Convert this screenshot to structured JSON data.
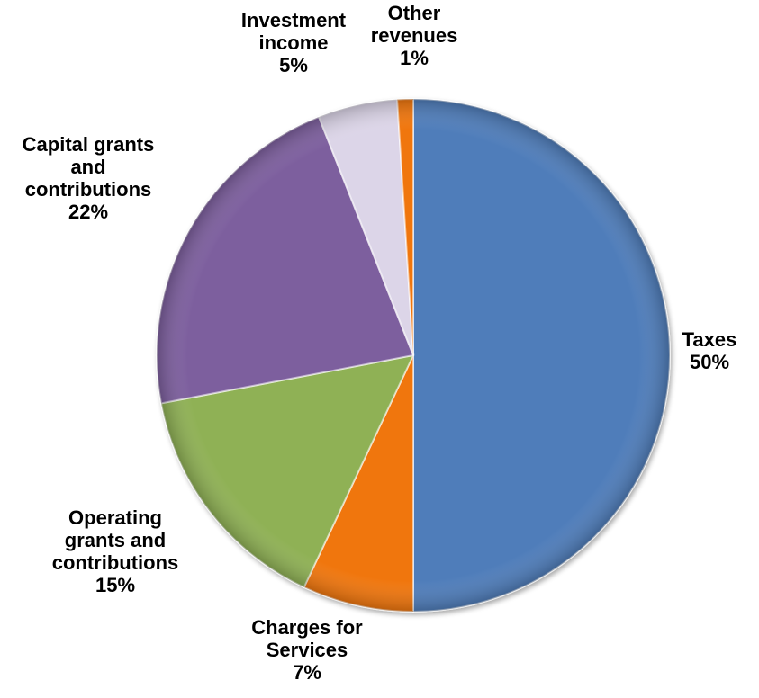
{
  "chart_data": {
    "type": "pie",
    "title": "",
    "start_angle_deg": 0,
    "direction": "clockwise",
    "effect": "3d-bevel",
    "slices": [
      {
        "label_lines": [
          "Taxes",
          "50%"
        ],
        "name": "Taxes",
        "value": 50,
        "color": "#4F7DBA"
      },
      {
        "label_lines": [
          "Charges for",
          "Services",
          "7%"
        ],
        "name": "Charges for Services",
        "value": 7,
        "color": "#F0760F"
      },
      {
        "label_lines": [
          "Operating",
          "grants and",
          "contributions",
          "15%"
        ],
        "name": "Operating grants and contributions",
        "value": 15,
        "color": "#8FB155"
      },
      {
        "label_lines": [
          "Capital grants",
          "and",
          "contributions",
          "22%"
        ],
        "name": "Capital grants and contributions",
        "value": 22,
        "color": "#7D5E9E"
      },
      {
        "label_lines": [
          "Investment",
          "income",
          "5%"
        ],
        "name": "Investment income",
        "value": 5,
        "color": "#DCD5E8"
      },
      {
        "label_lines": [
          "Other",
          "revenues",
          "1%"
        ],
        "name": "Other revenues",
        "value": 1,
        "color": "#F0760F"
      }
    ]
  }
}
